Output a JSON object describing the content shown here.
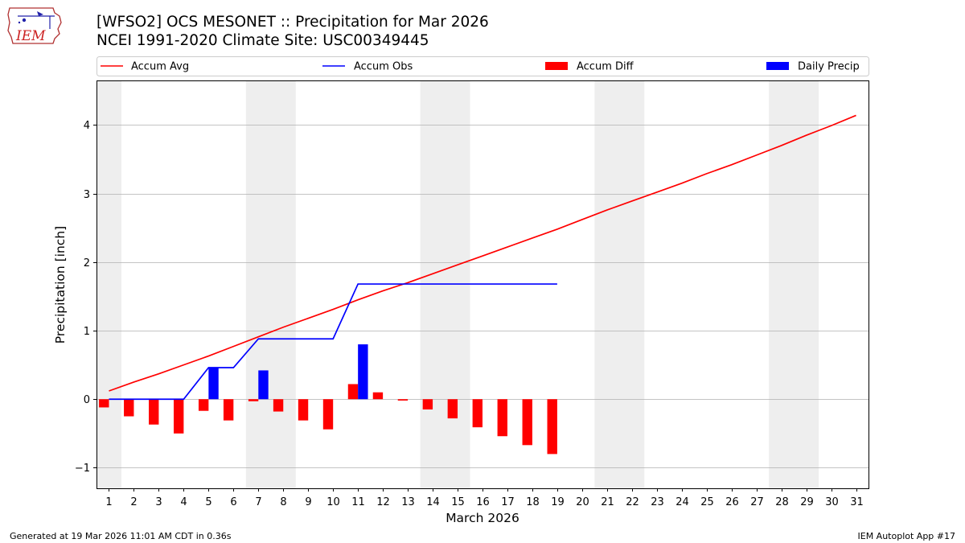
{
  "logo": {
    "text": "IEM",
    "icon": "iem-iowa-logo"
  },
  "header": {
    "title": "[WFSO2] OCS MESONET :: Precipitation for Mar 2026",
    "subtitle": "NCEI 1991-2020 Climate Site: USC00349445"
  },
  "footer": {
    "generated": "Generated at 19 Mar 2026 11:01 AM CDT in 0.36s",
    "app": "IEM Autoplot App #17"
  },
  "colors": {
    "avg": "#ff0000",
    "obs": "#0000ff",
    "diff": "#ff0000",
    "daily": "#0000ff",
    "weekend": "#eeeeee",
    "grid": "#b0b0b0"
  },
  "chart_data": {
    "type": "bar+line",
    "xlabel": "March 2026",
    "ylabel": "Precipitation [inch]",
    "xlim": [
      0.5,
      31.5
    ],
    "ylim": [
      -1.3,
      4.65
    ],
    "yticks": [
      -1,
      0,
      1,
      2,
      3,
      4
    ],
    "ytick_labels": [
      "−1",
      "0",
      "1",
      "2",
      "3",
      "4"
    ],
    "days": [
      1,
      2,
      3,
      4,
      5,
      6,
      7,
      8,
      9,
      10,
      11,
      12,
      13,
      14,
      15,
      16,
      17,
      18,
      19,
      20,
      21,
      22,
      23,
      24,
      25,
      26,
      27,
      28,
      29,
      30,
      31
    ],
    "weekend_shading": [
      [
        0.5,
        1.5
      ],
      [
        6.5,
        8.5
      ],
      [
        13.5,
        15.5
      ],
      [
        20.5,
        22.5
      ],
      [
        27.5,
        29.5
      ]
    ],
    "legend": [
      "Accum Avg",
      "Accum Obs",
      "Accum Diff",
      "Daily Precip"
    ],
    "series": [
      {
        "name": "Accum Avg",
        "kind": "line",
        "values": [
          0.12,
          0.25,
          0.37,
          0.5,
          0.63,
          0.77,
          0.91,
          1.05,
          1.18,
          1.31,
          1.45,
          1.58,
          1.7,
          1.83,
          1.96,
          2.09,
          2.22,
          2.35,
          2.48,
          2.62,
          2.76,
          2.89,
          3.02,
          3.15,
          3.29,
          3.42,
          3.56,
          3.7,
          3.85,
          3.99,
          4.14
        ]
      },
      {
        "name": "Accum Obs",
        "kind": "line",
        "values": [
          0,
          0,
          0,
          0,
          0.46,
          0.46,
          0.88,
          0.88,
          0.88,
          0.88,
          1.68,
          1.68,
          1.68,
          1.68,
          1.68,
          1.68,
          1.68,
          1.68,
          1.68
        ]
      },
      {
        "name": "Accum Diff",
        "kind": "bar",
        "values": [
          -0.12,
          -0.25,
          -0.37,
          -0.5,
          -0.17,
          -0.31,
          -0.03,
          -0.18,
          -0.31,
          -0.44,
          0.22,
          0.1,
          -0.02,
          -0.15,
          -0.28,
          -0.41,
          -0.54,
          -0.67,
          -0.8
        ]
      },
      {
        "name": "Daily Precip",
        "kind": "bar",
        "values": [
          0,
          0,
          0,
          0,
          0.46,
          0,
          0.42,
          0,
          0,
          0,
          0.8,
          0,
          0,
          0,
          0,
          0,
          0,
          0,
          0
        ]
      }
    ]
  }
}
